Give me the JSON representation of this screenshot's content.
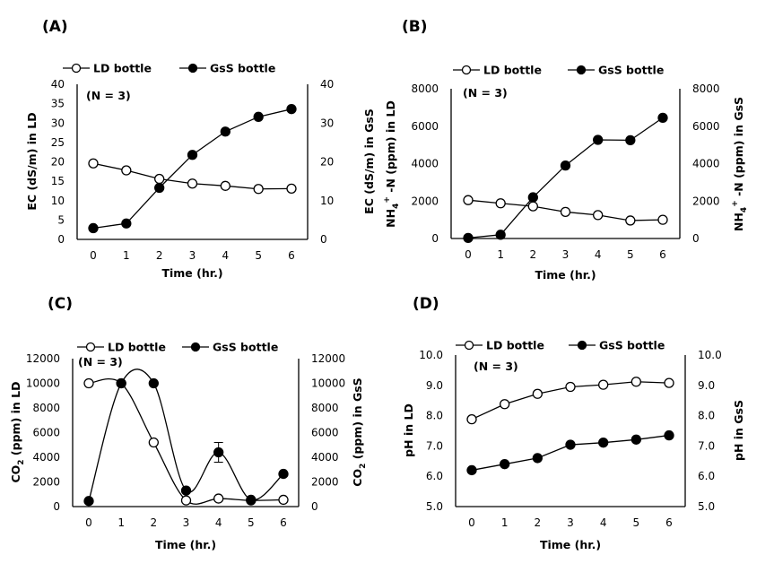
{
  "chart_data": [
    {
      "id": "A",
      "type": "line",
      "panel_label": "(A)",
      "note": "(N = 3)",
      "xlabel": "Time (hr.)",
      "ylabel": "EC (dS/m) in LD",
      "ylabel_right": "EC (dS/m) in GsS",
      "x": [
        0,
        1,
        2,
        3,
        4,
        5,
        6
      ],
      "xticks": [
        "0",
        "1",
        "2",
        "3",
        "4",
        "5",
        "6"
      ],
      "ylim": [
        0,
        40
      ],
      "yticks": [
        "0",
        "5",
        "10",
        "15",
        "20",
        "25",
        "30",
        "35",
        "40"
      ],
      "yticks_right": [
        "0",
        "10",
        "20",
        "30",
        "40"
      ],
      "smooth": false,
      "legend": "top",
      "series": [
        {
          "name": "LD bottle",
          "marker": "open-circle",
          "values": [
            19.6,
            17.8,
            15.6,
            14.4,
            13.8,
            13.0,
            13.1
          ]
        },
        {
          "name": "GsS bottle",
          "marker": "filled-circle",
          "values": [
            2.9,
            4.1,
            13.3,
            21.8,
            27.8,
            31.6,
            33.6
          ]
        }
      ]
    },
    {
      "id": "B",
      "type": "line",
      "panel_label": "(B)",
      "note": "(N = 3)",
      "xlabel": "Time (hr.)",
      "ylabel": "NH4+ -N (ppm) in LD",
      "ylabel_right": "NH4+ -N (ppm) in GsS",
      "x": [
        0,
        1,
        2,
        3,
        4,
        5,
        6
      ],
      "xticks": [
        "0",
        "1",
        "2",
        "3",
        "4",
        "5",
        "6"
      ],
      "ylim": [
        0,
        8000
      ],
      "yticks": [
        "0",
        "2000",
        "4000",
        "6000",
        "8000"
      ],
      "yticks_right": [
        "0",
        "2000",
        "4000",
        "6000",
        "8000"
      ],
      "smooth": false,
      "legend": "top",
      "series": [
        {
          "name": "LD bottle",
          "marker": "open-circle",
          "values": [
            2050,
            1880,
            1720,
            1420,
            1250,
            960,
            1000
          ]
        },
        {
          "name": "GsS bottle",
          "marker": "filled-circle",
          "values": [
            30,
            200,
            2200,
            3900,
            5270,
            5250,
            6450
          ]
        }
      ]
    },
    {
      "id": "C",
      "type": "line",
      "panel_label": "(C)",
      "note": "(N = 3)",
      "xlabel": "Time (hr.)",
      "ylabel": "CO2 (ppm) in LD",
      "ylabel_right": "CO2 (ppm) in GsS",
      "x": [
        0,
        1,
        2,
        3,
        4,
        5,
        6
      ],
      "xticks": [
        "0",
        "1",
        "2",
        "3",
        "4",
        "5",
        "6"
      ],
      "ylim": [
        0,
        12000
      ],
      "yticks": [
        "0",
        "2000",
        "4000",
        "6000",
        "8000",
        "10000",
        "12000"
      ],
      "yticks_right": [
        "0",
        "2000",
        "4000",
        "6000",
        "8000",
        "10000",
        "12000"
      ],
      "smooth": true,
      "legend": "top",
      "series": [
        {
          "name": "LD bottle",
          "marker": "open-circle",
          "values": [
            10000,
            10000,
            5200,
            500,
            650,
            500,
            550
          ]
        },
        {
          "name": "GsS bottle",
          "marker": "filled-circle",
          "values": [
            450,
            10000,
            10000,
            1300,
            4400,
            550,
            2650
          ],
          "error": [
            0,
            0,
            0,
            0,
            800,
            0,
            0
          ]
        }
      ]
    },
    {
      "id": "D",
      "type": "line",
      "panel_label": "(D)",
      "note": "(N = 3)",
      "xlabel": "Time (hr.)",
      "ylabel": "pH in LD",
      "ylabel_right": "pH in GsS",
      "x": [
        0,
        1,
        2,
        3,
        4,
        5,
        6
      ],
      "xticks": [
        "0",
        "1",
        "2",
        "3",
        "4",
        "5",
        "6"
      ],
      "ylim": [
        5,
        10
      ],
      "yticks": [
        "5.0",
        "6.0",
        "7.0",
        "8.0",
        "9.0",
        "10.0"
      ],
      "yticks_right": [
        "5.0",
        "6.0",
        "7.0",
        "8.0",
        "9.0",
        "10.0"
      ],
      "smooth": false,
      "legend": "top",
      "series": [
        {
          "name": "LD bottle",
          "marker": "open-circle",
          "values": [
            7.88,
            8.38,
            8.72,
            8.95,
            9.02,
            9.12,
            9.08
          ]
        },
        {
          "name": "GsS bottle",
          "marker": "filled-circle",
          "values": [
            6.2,
            6.4,
            6.6,
            7.04,
            7.11,
            7.21,
            7.35
          ]
        }
      ]
    }
  ]
}
